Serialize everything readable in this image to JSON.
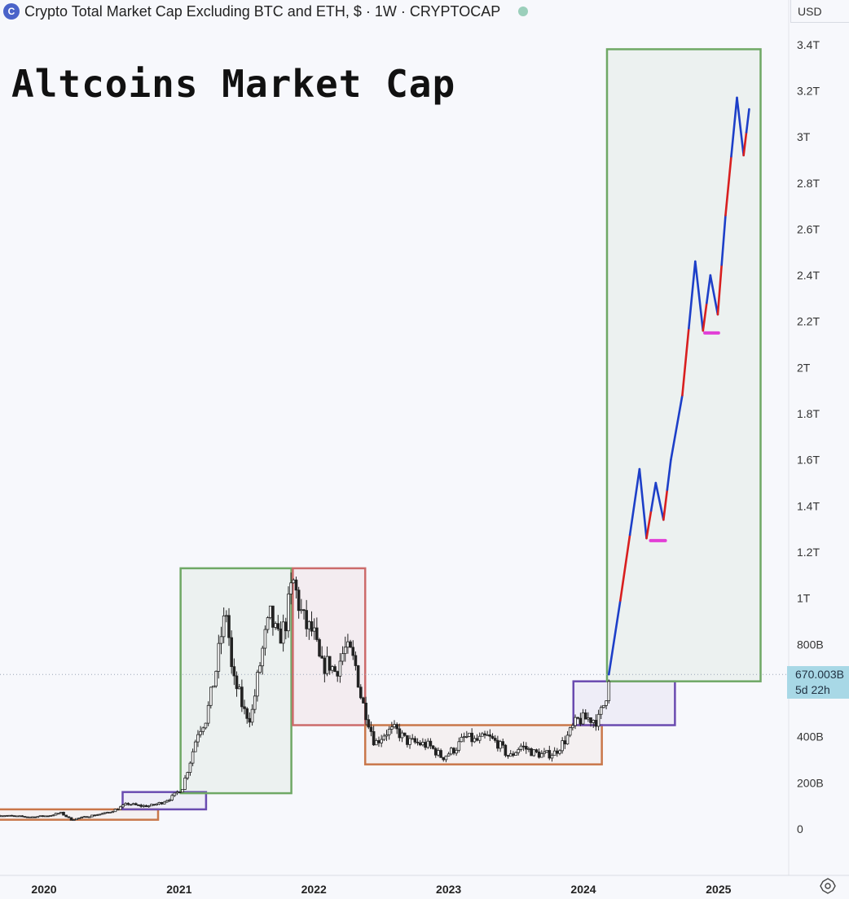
{
  "header": {
    "symbol_title": "Crypto Total Market Cap Excluding BTC and ETH, $ · 1W · CRYPTOCAP",
    "logo_icon": "cryptocap-logo-icon",
    "status_icon": "market-status-dot-icon"
  },
  "overlay_title": "Altcoins Market Cap",
  "currency_label": "USD",
  "last_price": {
    "value": "670.003B",
    "countdown": "5d 22h"
  },
  "settings_icon": "gear-icon",
  "colors": {
    "green_box": "#6fa865",
    "red_box": "#cc6b6b",
    "orange_box": "#c9774a",
    "purple_box": "#6a4bb0",
    "projection_blue": "#1d3fc8",
    "projection_red": "#d81f1f",
    "target_magenta": "#e23fd6",
    "price_tag": "#a8d8e6"
  },
  "chart_data": {
    "type": "line",
    "x_axis": {
      "tick_labels": [
        "2020",
        "2021",
        "2022",
        "2023",
        "2024",
        "2025"
      ]
    },
    "y_axis": {
      "unit": "USD",
      "range": [
        0,
        3400000000000
      ],
      "tick_labels": [
        "0",
        "200B",
        "400B",
        "800B",
        "1T",
        "1.2T",
        "1.4T",
        "1.6T",
        "1.8T",
        "2T",
        "2.2T",
        "2.4T",
        "2.6T",
        "2.8T",
        "3T",
        "3.2T",
        "3.4T"
      ],
      "tick_values": [
        0,
        200000000000.0,
        400000000000.0,
        800000000000.0,
        1000000000000.0,
        1200000000000.0,
        1400000000000.0,
        1600000000000.0,
        1800000000000.0,
        2000000000000.0,
        2200000000000.0,
        2400000000000.0,
        2600000000000.0,
        2800000000000.0,
        3000000000000.0,
        3200000000000.0,
        3400000000000.0
      ]
    },
    "series": [
      {
        "style": "candlestick-weekly",
        "points": [
          [
            "2019-09-01",
            60000000000.0
          ],
          [
            "2019-10-15",
            55000000000.0
          ],
          [
            "2019-12-01",
            52000000000.0
          ],
          [
            "2020-01-15",
            58000000000.0
          ],
          [
            "2020-02-15",
            70000000000.0
          ],
          [
            "2020-03-15",
            40000000000.0
          ],
          [
            "2020-04-15",
            50000000000.0
          ],
          [
            "2020-05-15",
            60000000000.0
          ],
          [
            "2020-06-15",
            68000000000.0
          ],
          [
            "2020-07-15",
            85000000000.0
          ],
          [
            "2020-08-15",
            110000000000.0
          ],
          [
            "2020-09-15",
            100000000000.0
          ],
          [
            "2020-10-15",
            100000000000.0
          ],
          [
            "2020-11-15",
            115000000000.0
          ],
          [
            "2020-12-15",
            140000000000.0
          ],
          [
            "2021-01-10",
            180000000000.0
          ],
          [
            "2021-02-01",
            300000000000.0
          ],
          [
            "2021-02-20",
            420000000000.0
          ],
          [
            "2021-03-15",
            480000000000.0
          ],
          [
            "2021-04-10",
            680000000000.0
          ],
          [
            "2021-04-25",
            840000000000.0
          ],
          [
            "2021-05-10",
            950000000000.0
          ],
          [
            "2021-05-25",
            650000000000.0
          ],
          [
            "2021-06-10",
            600000000000.0
          ],
          [
            "2021-06-25",
            510000000000.0
          ],
          [
            "2021-07-15",
            480000000000.0
          ],
          [
            "2021-08-01",
            650000000000.0
          ],
          [
            "2021-08-20",
            820000000000.0
          ],
          [
            "2021-09-05",
            920000000000.0
          ],
          [
            "2021-09-25",
            820000000000.0
          ],
          [
            "2021-10-15",
            880000000000.0
          ],
          [
            "2021-11-05",
            1080000000000.0
          ],
          [
            "2021-11-25",
            950000000000.0
          ],
          [
            "2021-12-10",
            880000000000.0
          ],
          [
            "2021-12-31",
            850000000000.0
          ],
          [
            "2022-01-20",
            700000000000.0
          ],
          [
            "2022-02-10",
            720000000000.0
          ],
          [
            "2022-03-01",
            680000000000.0
          ],
          [
            "2022-03-25",
            780000000000.0
          ],
          [
            "2022-04-10",
            760000000000.0
          ],
          [
            "2022-04-25",
            700000000000.0
          ],
          [
            "2022-05-10",
            560000000000.0
          ],
          [
            "2022-05-25",
            490000000000.0
          ],
          [
            "2022-06-15",
            370000000000.0
          ],
          [
            "2022-07-15",
            420000000000.0
          ],
          [
            "2022-08-10",
            430000000000.0
          ],
          [
            "2022-09-10",
            380000000000.0
          ],
          [
            "2022-10-15",
            370000000000.0
          ],
          [
            "2022-11-10",
            360000000000.0
          ],
          [
            "2022-12-15",
            310000000000.0
          ],
          [
            "2023-01-20",
            350000000000.0
          ],
          [
            "2023-02-15",
            400000000000.0
          ],
          [
            "2023-03-15",
            380000000000.0
          ],
          [
            "2023-04-15",
            400000000000.0
          ],
          [
            "2023-05-15",
            370000000000.0
          ],
          [
            "2023-06-15",
            310000000000.0
          ],
          [
            "2023-07-15",
            360000000000.0
          ],
          [
            "2023-08-20",
            330000000000.0
          ],
          [
            "2023-09-15",
            320000000000.0
          ],
          [
            "2023-10-15",
            330000000000.0
          ],
          [
            "2023-11-15",
            390000000000.0
          ],
          [
            "2023-12-15",
            470000000000.0
          ],
          [
            "2024-01-15",
            480000000000.0
          ],
          [
            "2024-02-10",
            470000000000.0
          ],
          [
            "2024-03-01",
            560000000000.0
          ],
          [
            "2024-03-10",
            670000000000.0
          ]
        ]
      },
      {
        "style": "projection-path",
        "points": [
          [
            "2024-03-10",
            670000000000.0
          ],
          [
            "2024-04-10",
            990000000000.0
          ],
          [
            "2024-06-01",
            1560000000000.0
          ],
          [
            "2024-06-20",
            1260000000000.0
          ],
          [
            "2024-07-15",
            1500000000000.0
          ],
          [
            "2024-08-05",
            1340000000000.0
          ],
          [
            "2024-08-25",
            1600000000000.0
          ],
          [
            "2024-09-25",
            1880000000000.0
          ],
          [
            "2024-10-30",
            2460000000000.0
          ],
          [
            "2024-11-20",
            2160000000000.0
          ],
          [
            "2024-12-10",
            2400000000000.0
          ],
          [
            "2024-12-30",
            2230000000000.0
          ],
          [
            "2025-01-20",
            2660000000000.0
          ],
          [
            "2025-02-20",
            3170000000000.0
          ],
          [
            "2025-03-10",
            2920000000000.0
          ],
          [
            "2025-03-25",
            3120000000000.0
          ]
        ]
      }
    ],
    "zones": [
      {
        "color": "orange",
        "x0": "2019-09-01",
        "x1": "2020-11-05",
        "y0": 40000000000.0,
        "y1": 85000000000.0
      },
      {
        "color": "purple",
        "x0": "2020-08-01",
        "x1": "2021-03-15",
        "y0": 85000000000.0,
        "y1": 160000000000.0
      },
      {
        "color": "green",
        "x0": "2021-01-05",
        "x1": "2021-11-01",
        "y0": 155000000000.0,
        "y1": 1130000000000.0
      },
      {
        "color": "red",
        "x0": "2021-11-05",
        "x1": "2022-05-20",
        "y0": 450000000000.0,
        "y1": 1130000000000.0
      },
      {
        "color": "orange",
        "x0": "2022-05-20",
        "x1": "2024-02-20",
        "y0": 280000000000.0,
        "y1": 450000000000.0
      },
      {
        "color": "purple",
        "x0": "2023-12-05",
        "x1": "2024-09-05",
        "y0": 450000000000.0,
        "y1": 640000000000.0
      },
      {
        "color": "green",
        "x0": "2024-03-05",
        "x1": "2025-04-25",
        "y0": 640000000000.0,
        "y1": 3380000000000.0
      }
    ],
    "target_marks": [
      {
        "x0": "2024-07-01",
        "x1": "2024-08-10",
        "y": 1250000000000.0
      },
      {
        "x0": "2024-11-25",
        "x1": "2025-01-01",
        "y": 2150000000000.0
      }
    ],
    "last_value_line": 670000000000.0
  }
}
